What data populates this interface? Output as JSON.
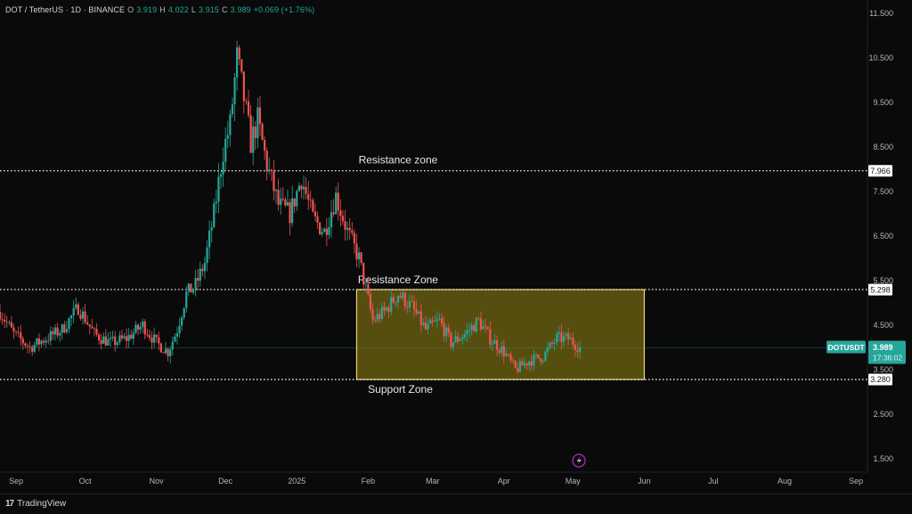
{
  "legend": {
    "symbol": "DOT / TetherUS · 1D · BINANCE",
    "o_label": "O",
    "o": "3.919",
    "h_label": "H",
    "h": "4.022",
    "l_label": "L",
    "l": "3.915",
    "c_label": "C",
    "c": "3.989",
    "change": "+0.069 (+1.76%)"
  },
  "footer": {
    "brand_logo": "17",
    "brand_name": "TradingView"
  },
  "colors": {
    "up": "#26a69a",
    "down": "#ef5350",
    "zone_fill": "#6b6210",
    "zone_border": "#f0d27a",
    "ticker_badge": "#26a69a",
    "background": "#0a0a0a"
  },
  "chart_data": {
    "type": "candlestick",
    "x_axis": {
      "type": "date",
      "range": [
        "2024-08-25",
        "2025-09-06"
      ],
      "ticks": [
        {
          "label": "Sep",
          "date": "2024-09-01"
        },
        {
          "label": "Oct",
          "date": "2024-10-01"
        },
        {
          "label": "Nov",
          "date": "2024-11-01"
        },
        {
          "label": "Dec",
          "date": "2024-12-01"
        },
        {
          "label": "2025",
          "date": "2025-01-01"
        },
        {
          "label": "Feb",
          "date": "2025-02-01"
        },
        {
          "label": "Mar",
          "date": "2025-03-01"
        },
        {
          "label": "Apr",
          "date": "2025-04-01"
        },
        {
          "label": "May",
          "date": "2025-05-01"
        },
        {
          "label": "Jun",
          "date": "2025-06-01"
        },
        {
          "label": "Jul",
          "date": "2025-07-01"
        },
        {
          "label": "Aug",
          "date": "2025-08-01"
        },
        {
          "label": "Sep",
          "date": "2025-09-01"
        }
      ]
    },
    "y_axis": {
      "range": [
        1.2,
        11.8
      ],
      "ticks": [
        "11.500",
        "10.500",
        "9.500",
        "8.500",
        "7.500",
        "6.500",
        "5.500",
        "4.500",
        "3.500",
        "2.500",
        "1.500"
      ]
    },
    "horizontal_lines": [
      {
        "label": "Resistance zone",
        "price": 7.966,
        "price_label": "7.966"
      },
      {
        "label": "Resistance Zone",
        "price": 5.298,
        "price_label": "5.298"
      },
      {
        "label": "Support Zone",
        "price": 3.28,
        "price_label": "3.280"
      }
    ],
    "zone": {
      "start": "2025-01-27",
      "end": "2025-06-01",
      "low": 3.28,
      "high": 5.298
    },
    "last_price": {
      "ticker": "DOTUSDT",
      "price": "3.989",
      "countdown": "17:36:02",
      "value": 3.989
    },
    "price_path": [
      [
        "2024-08-25",
        4.8
      ],
      [
        "2024-08-31",
        4.3
      ],
      [
        "2024-09-07",
        4.0
      ],
      [
        "2024-09-14",
        4.2
      ],
      [
        "2024-09-21",
        4.4
      ],
      [
        "2024-09-28",
        4.9
      ],
      [
        "2024-10-05",
        4.3
      ],
      [
        "2024-10-12",
        4.1
      ],
      [
        "2024-10-19",
        4.2
      ],
      [
        "2024-10-26",
        4.5
      ],
      [
        "2024-11-01",
        4.1
      ],
      [
        "2024-11-06",
        3.9
      ],
      [
        "2024-11-10",
        4.4
      ],
      [
        "2024-11-14",
        5.2
      ],
      [
        "2024-11-18",
        5.4
      ],
      [
        "2024-11-22",
        5.9
      ],
      [
        "2024-11-26",
        7.0
      ],
      [
        "2024-11-30",
        8.4
      ],
      [
        "2024-12-03",
        9.0
      ],
      [
        "2024-12-06",
        10.5
      ],
      [
        "2024-12-09",
        9.6
      ],
      [
        "2024-12-12",
        8.6
      ],
      [
        "2024-12-15",
        9.1
      ],
      [
        "2024-12-19",
        8.1
      ],
      [
        "2024-12-24",
        7.2
      ],
      [
        "2024-12-29",
        7.0
      ],
      [
        "2025-01-03",
        7.8
      ],
      [
        "2025-01-08",
        6.9
      ],
      [
        "2025-01-13",
        6.6
      ],
      [
        "2025-01-18",
        7.4
      ],
      [
        "2025-01-23",
        6.6
      ],
      [
        "2025-01-28",
        6.0
      ],
      [
        "2025-02-03",
        4.6
      ],
      [
        "2025-02-08",
        4.8
      ],
      [
        "2025-02-14",
        5.2
      ],
      [
        "2025-02-20",
        4.9
      ],
      [
        "2025-02-26",
        4.4
      ],
      [
        "2025-03-04",
        4.6
      ],
      [
        "2025-03-09",
        4.1
      ],
      [
        "2025-03-15",
        4.3
      ],
      [
        "2025-03-21",
        4.6
      ],
      [
        "2025-03-26",
        4.2
      ],
      [
        "2025-04-01",
        3.9
      ],
      [
        "2025-04-06",
        3.5
      ],
      [
        "2025-04-12",
        3.7
      ],
      [
        "2025-04-18",
        3.8
      ],
      [
        "2025-04-24",
        4.2
      ],
      [
        "2025-04-29",
        4.2
      ],
      [
        "2025-05-04",
        3.99
      ]
    ]
  }
}
